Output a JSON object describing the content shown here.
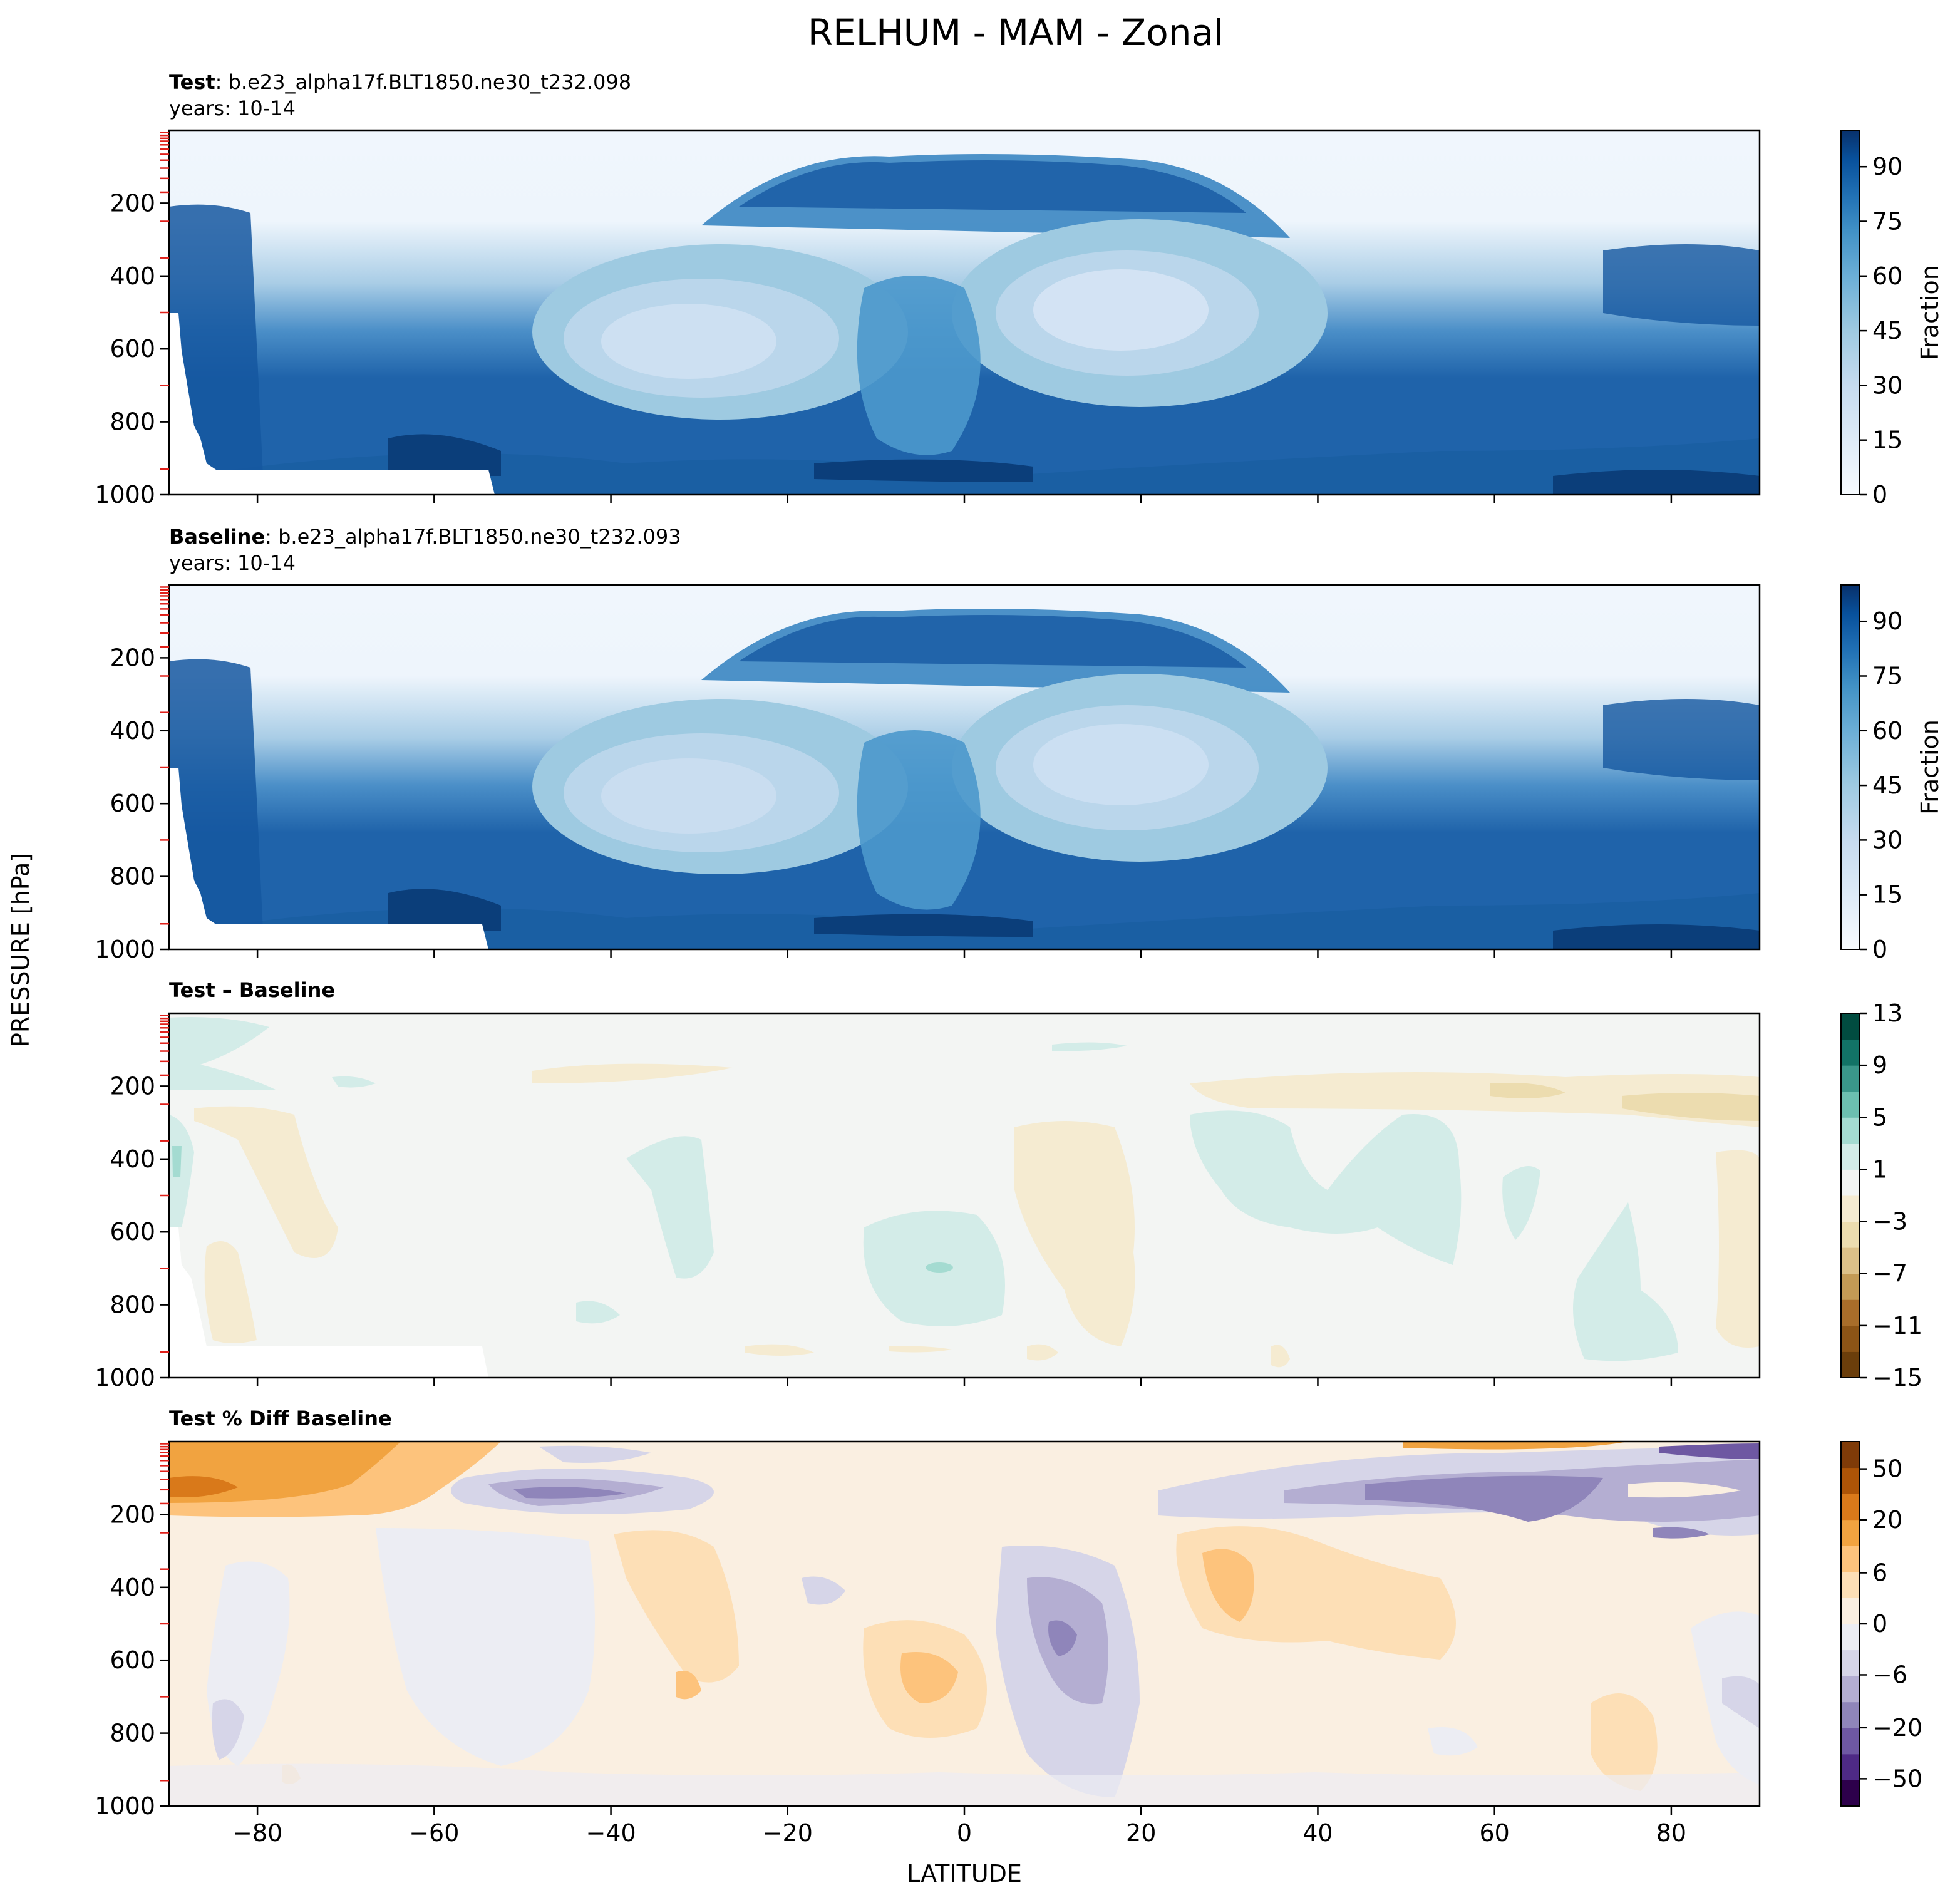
{
  "chart_data": {
    "type": "heatmap",
    "title": "RELHUM - MAM - Zonal",
    "xlabel": "LATITUDE",
    "ylabel": "PRESSURE [hPa]",
    "xlim": [
      -90,
      90
    ],
    "ylim": [
      1000,
      0
    ],
    "x_ticks": [
      -80,
      -60,
      -40,
      -20,
      0,
      20,
      40,
      60,
      80
    ],
    "y_ticks": [
      200,
      400,
      600,
      800,
      1000
    ],
    "panels": [
      {
        "name": "test",
        "label_bold": "Test",
        "case": ": b.e23_alpha17f.BLT1850.ne30_t232.098",
        "years": "years: 10-14",
        "colorbar_label": "Fraction",
        "colorbar_ticks": [
          0,
          15,
          30,
          45,
          60,
          75,
          90
        ],
        "colormap": "Blues",
        "colors": [
          "#f7fbff",
          "#deebf7",
          "#c6dbef",
          "#9ecae1",
          "#6baed6",
          "#4292c6",
          "#2171b5",
          "#08519c",
          "#08306b"
        ],
        "vmin": 0,
        "vmax": 100
      },
      {
        "name": "baseline",
        "label_bold": "Baseline",
        "case": ": b.e23_alpha17f.BLT1850.ne30_t232.093",
        "years": "years: 10-14",
        "colorbar_label": "Fraction",
        "colorbar_ticks": [
          0,
          15,
          30,
          45,
          60,
          75,
          90
        ],
        "colormap": "Blues",
        "colors": [
          "#f7fbff",
          "#deebf7",
          "#c6dbef",
          "#9ecae1",
          "#6baed6",
          "#4292c6",
          "#2171b5",
          "#08519c",
          "#08306b"
        ],
        "vmin": 0,
        "vmax": 100
      },
      {
        "name": "difference",
        "label_bold": "Test – Baseline",
        "case": "",
        "years": "",
        "colorbar_label": "",
        "colorbar_ticks": [
          -15,
          -11,
          -7,
          -3,
          1,
          5,
          9,
          13
        ],
        "colormap": "BrBG",
        "colors": [
          "#6b3e0b",
          "#8c5416",
          "#a86d2a",
          "#c39a55",
          "#dcc088",
          "#ecdcaf",
          "#f5ebd1",
          "#f3f5f3",
          "#d3ece8",
          "#a4dbd1",
          "#6cbfb0",
          "#3a978a",
          "#127366",
          "#014c40"
        ],
        "vmin": -15,
        "vmax": 13
      },
      {
        "name": "percent",
        "label_bold": "Test % Diff Baseline",
        "case": "",
        "years": "",
        "colorbar_label": "",
        "colorbar_ticks": [
          -50,
          -20,
          -6,
          0,
          6,
          20,
          50
        ],
        "colormap": "PuOr_r",
        "colors": [
          "#2d004b",
          "#4e2a85",
          "#6e58a2",
          "#8f85ba",
          "#b4aed2",
          "#d6d5e8",
          "#ecedf3",
          "#faefe1",
          "#fddfb6",
          "#fdc37c",
          "#f1a340",
          "#d9791a",
          "#ad5407",
          "#7f3b08"
        ],
        "vmin": -60,
        "vmax": 60
      }
    ]
  }
}
